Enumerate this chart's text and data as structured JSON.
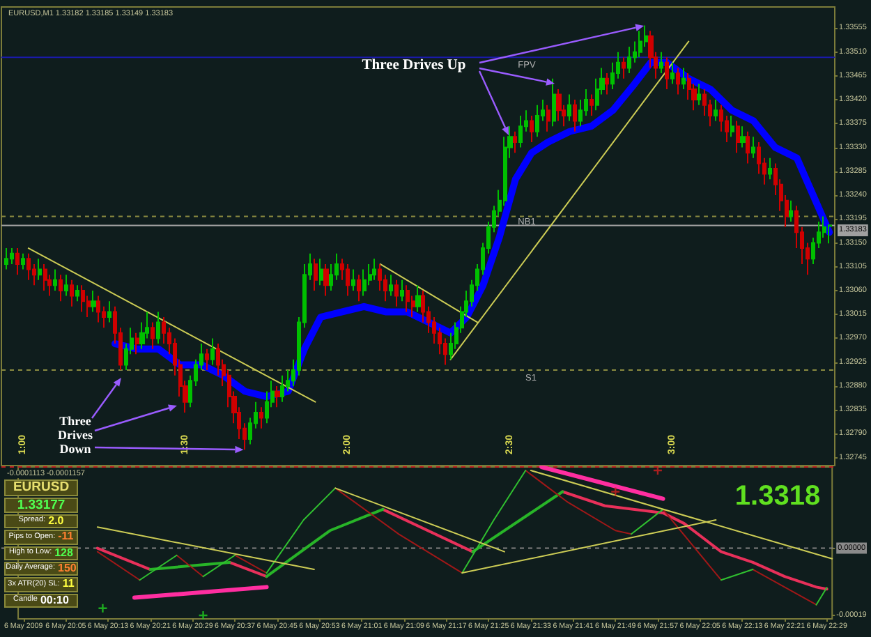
{
  "chart_data": [
    {
      "type": "candlestick",
      "title": "EURUSD,M1 1.33182 1.33185 1.33149 1.33183",
      "x": [
        "2009-05-06T19:57",
        "2009-05-06T19:58",
        "2009-05-06T19:59",
        "2009-05-06T20:00",
        "2009-05-06T20:01",
        "2009-05-06T20:02",
        "2009-05-06T20:03",
        "2009-05-06T20:04",
        "2009-05-06T20:05",
        "2009-05-06T20:06",
        "2009-05-06T20:07",
        "2009-05-06T20:08",
        "2009-05-06T20:09",
        "2009-05-06T20:10",
        "2009-05-06T20:11",
        "2009-05-06T20:12",
        "2009-05-06T20:13",
        "2009-05-06T20:14",
        "2009-05-06T20:15",
        "2009-05-06T20:16",
        "2009-05-06T20:17",
        "2009-05-06T20:18",
        "2009-05-06T20:19",
        "2009-05-06T20:20",
        "2009-05-06T20:21",
        "2009-05-06T20:22",
        "2009-05-06T20:23",
        "2009-05-06T20:24",
        "2009-05-06T20:25",
        "2009-05-06T20:26",
        "2009-05-06T20:27",
        "2009-05-06T20:28",
        "2009-05-06T20:29",
        "2009-05-06T20:30",
        "2009-05-06T20:31",
        "2009-05-06T20:32",
        "2009-05-06T20:33",
        "2009-05-06T20:34",
        "2009-05-06T20:35",
        "2009-05-06T20:36",
        "2009-05-06T20:37",
        "2009-05-06T20:38",
        "2009-05-06T20:39",
        "2009-05-06T20:40",
        "2009-05-06T20:41",
        "2009-05-06T20:42",
        "2009-05-06T20:43",
        "2009-05-06T20:44",
        "2009-05-06T20:45",
        "2009-05-06T20:46",
        "2009-05-06T20:47",
        "2009-05-06T20:48",
        "2009-05-06T20:49",
        "2009-05-06T20:50",
        "2009-05-06T20:51",
        "2009-05-06T20:52",
        "2009-05-06T20:53",
        "2009-05-06T20:54",
        "2009-05-06T20:55",
        "2009-05-06T20:56",
        "2009-05-06T20:57",
        "2009-05-06T20:58",
        "2009-05-06T20:59",
        "2009-05-06T21:00",
        "2009-05-06T21:01",
        "2009-05-06T21:02",
        "2009-05-06T21:03",
        "2009-05-06T21:04",
        "2009-05-06T21:05",
        "2009-05-06T21:06",
        "2009-05-06T21:07",
        "2009-05-06T21:08",
        "2009-05-06T21:09",
        "2009-05-06T21:10",
        "2009-05-06T21:11",
        "2009-05-06T21:12",
        "2009-05-06T21:13",
        "2009-05-06T21:14",
        "2009-05-06T21:15",
        "2009-05-06T21:16",
        "2009-05-06T21:17",
        "2009-05-06T21:18",
        "2009-05-06T21:19",
        "2009-05-06T21:20",
        "2009-05-06T21:21",
        "2009-05-06T21:22",
        "2009-05-06T21:23",
        "2009-05-06T21:24",
        "2009-05-06T21:25",
        "2009-05-06T21:26",
        "2009-05-06T21:27",
        "2009-05-06T21:28",
        "2009-05-06T21:29",
        "2009-05-06T21:30",
        "2009-05-06T21:31",
        "2009-05-06T21:32",
        "2009-05-06T21:33",
        "2009-05-06T21:34",
        "2009-05-06T21:35",
        "2009-05-06T21:36",
        "2009-05-06T21:37",
        "2009-05-06T21:38",
        "2009-05-06T21:39",
        "2009-05-06T21:40",
        "2009-05-06T21:41",
        "2009-05-06T21:42",
        "2009-05-06T21:43",
        "2009-05-06T21:44",
        "2009-05-06T21:45",
        "2009-05-06T21:46",
        "2009-05-06T21:47",
        "2009-05-06T21:48",
        "2009-05-06T21:49",
        "2009-05-06T21:50",
        "2009-05-06T21:51",
        "2009-05-06T21:52",
        "2009-05-06T21:53",
        "2009-05-06T21:54",
        "2009-05-06T21:55",
        "2009-05-06T21:56",
        "2009-05-06T21:57",
        "2009-05-06T21:58",
        "2009-05-06T21:59",
        "2009-05-06T22:00",
        "2009-05-06T22:01",
        "2009-05-06T22:02",
        "2009-05-06T22:03",
        "2009-05-06T22:04",
        "2009-05-06T22:05",
        "2009-05-06T22:06",
        "2009-05-06T22:07",
        "2009-05-06T22:08",
        "2009-05-06T22:09",
        "2009-05-06T22:10",
        "2009-05-06T22:11",
        "2009-05-06T22:12",
        "2009-05-06T22:13",
        "2009-05-06T22:14",
        "2009-05-06T22:15",
        "2009-05-06T22:16",
        "2009-05-06T22:17",
        "2009-05-06T22:18",
        "2009-05-06T22:19",
        "2009-05-06T22:20",
        "2009-05-06T22:21",
        "2009-05-06T22:22",
        "2009-05-06T22:23",
        "2009-05-06T22:24",
        "2009-05-06T22:25",
        "2009-05-06T22:26",
        "2009-05-06T22:27",
        "2009-05-06T22:28",
        "2009-05-06T22:29"
      ],
      "ohlc": [
        [
          1.3311,
          1.3314,
          1.331,
          1.3312
        ],
        [
          1.3312,
          1.3314,
          1.3311,
          1.3313
        ],
        [
          1.3313,
          1.3314,
          1.3309,
          1.3311
        ],
        [
          1.3311,
          1.3313,
          1.331,
          1.3312
        ],
        [
          1.3312,
          1.3313,
          1.3308,
          1.331
        ],
        [
          1.331,
          1.3311,
          1.3307,
          1.3309
        ],
        [
          1.3309,
          1.3312,
          1.3308,
          1.331
        ],
        [
          1.331,
          1.3311,
          1.3306,
          1.3308
        ],
        [
          1.3308,
          1.3309,
          1.3305,
          1.3307
        ],
        [
          1.3307,
          1.331,
          1.3306,
          1.3308
        ],
        [
          1.3308,
          1.3309,
          1.3304,
          1.3306
        ],
        [
          1.3306,
          1.3309,
          1.3305,
          1.3307
        ],
        [
          1.3307,
          1.3308,
          1.3303,
          1.3305
        ],
        [
          1.3305,
          1.3307,
          1.3304,
          1.3306
        ],
        [
          1.3306,
          1.3307,
          1.3302,
          1.3304
        ],
        [
          1.3304,
          1.3305,
          1.3301,
          1.3303
        ],
        [
          1.3303,
          1.3306,
          1.3302,
          1.3304
        ],
        [
          1.3304,
          1.3305,
          1.33,
          1.3302
        ],
        [
          1.3302,
          1.3303,
          1.3299,
          1.3301
        ],
        [
          1.3301,
          1.3304,
          1.33,
          1.3302
        ],
        [
          1.3302,
          1.3303,
          1.3296,
          1.3298
        ],
        [
          1.3298,
          1.3299,
          1.3291,
          1.3292
        ],
        [
          1.3292,
          1.3296,
          1.3291,
          1.3295
        ],
        [
          1.3295,
          1.3299,
          1.3294,
          1.3297
        ],
        [
          1.3297,
          1.3298,
          1.3294,
          1.3296
        ],
        [
          1.3296,
          1.33,
          1.3295,
          1.3298
        ],
        [
          1.3298,
          1.3302,
          1.3297,
          1.3299
        ],
        [
          1.3299,
          1.33,
          1.3295,
          1.3297
        ],
        [
          1.3297,
          1.3302,
          1.3296,
          1.33
        ],
        [
          1.33,
          1.3301,
          1.3296,
          1.3298
        ],
        [
          1.3298,
          1.3299,
          1.3294,
          1.3296
        ],
        [
          1.3296,
          1.3297,
          1.329,
          1.3292
        ],
        [
          1.3292,
          1.3293,
          1.3286,
          1.3288
        ],
        [
          1.3288,
          1.3289,
          1.3283,
          1.3285
        ],
        [
          1.3285,
          1.329,
          1.3284,
          1.3289
        ],
        [
          1.3289,
          1.3293,
          1.3288,
          1.3292
        ],
        [
          1.3292,
          1.3296,
          1.3291,
          1.3294
        ],
        [
          1.3294,
          1.3295,
          1.3291,
          1.3293
        ],
        [
          1.3293,
          1.3297,
          1.3292,
          1.3295
        ],
        [
          1.3295,
          1.3296,
          1.329,
          1.3292
        ],
        [
          1.3292,
          1.3293,
          1.3288,
          1.329
        ],
        [
          1.329,
          1.3291,
          1.3284,
          1.3286
        ],
        [
          1.3286,
          1.3287,
          1.3281,
          1.3283
        ],
        [
          1.3283,
          1.3284,
          1.3278,
          1.328
        ],
        [
          1.328,
          1.3281,
          1.3276,
          1.3278
        ],
        [
          1.3278,
          1.3282,
          1.3277,
          1.3281
        ],
        [
          1.3281,
          1.3285,
          1.328,
          1.3283
        ],
        [
          1.3283,
          1.3284,
          1.328,
          1.3282
        ],
        [
          1.3282,
          1.3287,
          1.3281,
          1.3285
        ],
        [
          1.3285,
          1.3289,
          1.3284,
          1.3287
        ],
        [
          1.3287,
          1.3288,
          1.3284,
          1.3286
        ],
        [
          1.3286,
          1.329,
          1.3285,
          1.3288
        ],
        [
          1.3288,
          1.3291,
          1.3287,
          1.3289
        ],
        [
          1.3289,
          1.3293,
          1.3288,
          1.3291
        ],
        [
          1.3291,
          1.3301,
          1.329,
          1.33
        ],
        [
          1.33,
          1.3311,
          1.3299,
          1.3309
        ],
        [
          1.3309,
          1.3313,
          1.3308,
          1.3311
        ],
        [
          1.3311,
          1.3312,
          1.3306,
          1.3308
        ],
        [
          1.3308,
          1.3312,
          1.3307,
          1.331
        ],
        [
          1.331,
          1.3311,
          1.3305,
          1.3307
        ],
        [
          1.3307,
          1.3311,
          1.3306,
          1.3309
        ],
        [
          1.3309,
          1.3313,
          1.3308,
          1.3311
        ],
        [
          1.3311,
          1.3312,
          1.3308,
          1.331
        ],
        [
          1.331,
          1.3311,
          1.3305,
          1.3307
        ],
        [
          1.3307,
          1.331,
          1.3306,
          1.3308
        ],
        [
          1.3308,
          1.3309,
          1.3304,
          1.3306
        ],
        [
          1.3306,
          1.331,
          1.3305,
          1.3308
        ],
        [
          1.3308,
          1.3311,
          1.3307,
          1.3309
        ],
        [
          1.3309,
          1.3312,
          1.3308,
          1.331
        ],
        [
          1.331,
          1.3311,
          1.3306,
          1.3308
        ],
        [
          1.3308,
          1.3309,
          1.3304,
          1.3306
        ],
        [
          1.3306,
          1.3309,
          1.3305,
          1.3307
        ],
        [
          1.3307,
          1.3308,
          1.3303,
          1.3305
        ],
        [
          1.3305,
          1.3308,
          1.3304,
          1.3306
        ],
        [
          1.3306,
          1.3307,
          1.3302,
          1.3304
        ],
        [
          1.3304,
          1.3305,
          1.3301,
          1.3303
        ],
        [
          1.3303,
          1.3307,
          1.3302,
          1.3305
        ],
        [
          1.3305,
          1.3306,
          1.33,
          1.3302
        ],
        [
          1.3302,
          1.3303,
          1.3298,
          1.33
        ],
        [
          1.33,
          1.3301,
          1.3296,
          1.3298
        ],
        [
          1.3298,
          1.3299,
          1.3294,
          1.3296
        ],
        [
          1.3296,
          1.3297,
          1.3292,
          1.3294
        ],
        [
          1.3294,
          1.3298,
          1.3293,
          1.3296
        ],
        [
          1.3296,
          1.33,
          1.3295,
          1.3299
        ],
        [
          1.3299,
          1.3303,
          1.3298,
          1.3302
        ],
        [
          1.3302,
          1.3306,
          1.3301,
          1.3304
        ],
        [
          1.3304,
          1.3308,
          1.3303,
          1.3307
        ],
        [
          1.3307,
          1.3311,
          1.3306,
          1.331
        ],
        [
          1.331,
          1.3315,
          1.3309,
          1.3314
        ],
        [
          1.3314,
          1.3319,
          1.3313,
          1.3318
        ],
        [
          1.3318,
          1.3322,
          1.3317,
          1.3321
        ],
        [
          1.3321,
          1.3325,
          1.332,
          1.3323
        ],
        [
          1.3323,
          1.3335,
          1.3322,
          1.3333
        ],
        [
          1.3333,
          1.3337,
          1.3331,
          1.3335
        ],
        [
          1.3335,
          1.3336,
          1.3332,
          1.3334
        ],
        [
          1.3334,
          1.3339,
          1.3333,
          1.3337
        ],
        [
          1.3337,
          1.334,
          1.3336,
          1.3338
        ],
        [
          1.3338,
          1.3339,
          1.3334,
          1.3336
        ],
        [
          1.3336,
          1.3341,
          1.3335,
          1.3339
        ],
        [
          1.3339,
          1.3342,
          1.3338,
          1.334
        ],
        [
          1.334,
          1.3341,
          1.3336,
          1.3338
        ],
        [
          1.3338,
          1.3346,
          1.3337,
          1.3343
        ],
        [
          1.3343,
          1.3344,
          1.3338,
          1.334
        ],
        [
          1.334,
          1.3341,
          1.3337,
          1.3339
        ],
        [
          1.3339,
          1.3343,
          1.3338,
          1.3341
        ],
        [
          1.3341,
          1.3342,
          1.3336,
          1.3338
        ],
        [
          1.3338,
          1.3342,
          1.3337,
          1.334
        ],
        [
          1.334,
          1.3344,
          1.3339,
          1.3342
        ],
        [
          1.3342,
          1.3343,
          1.3339,
          1.3341
        ],
        [
          1.3341,
          1.3346,
          1.334,
          1.3344
        ],
        [
          1.3344,
          1.3348,
          1.3343,
          1.3346
        ],
        [
          1.3346,
          1.3347,
          1.3343,
          1.3345
        ],
        [
          1.3345,
          1.3349,
          1.3344,
          1.3347
        ],
        [
          1.3347,
          1.3351,
          1.3346,
          1.3349
        ],
        [
          1.3349,
          1.335,
          1.3346,
          1.3348
        ],
        [
          1.3348,
          1.3352,
          1.3347,
          1.335
        ],
        [
          1.335,
          1.3353,
          1.3349,
          1.3351
        ],
        [
          1.3351,
          1.3355,
          1.335,
          1.3353
        ],
        [
          1.3353,
          1.3356,
          1.3352,
          1.3354
        ],
        [
          1.3354,
          1.3355,
          1.3348,
          1.335
        ],
        [
          1.335,
          1.3351,
          1.3346,
          1.3348
        ],
        [
          1.3348,
          1.3351,
          1.3347,
          1.3349
        ],
        [
          1.3349,
          1.335,
          1.3344,
          1.3346
        ],
        [
          1.3346,
          1.3349,
          1.3345,
          1.3347
        ],
        [
          1.3347,
          1.3348,
          1.3343,
          1.3345
        ],
        [
          1.3345,
          1.3348,
          1.3344,
          1.3346
        ],
        [
          1.3346,
          1.3347,
          1.3342,
          1.3344
        ],
        [
          1.3344,
          1.3345,
          1.334,
          1.3342
        ],
        [
          1.3342,
          1.3345,
          1.3341,
          1.3343
        ],
        [
          1.3343,
          1.3344,
          1.3339,
          1.3341
        ],
        [
          1.3341,
          1.3342,
          1.3337,
          1.3339
        ],
        [
          1.3339,
          1.3342,
          1.3338,
          1.334
        ],
        [
          1.334,
          1.3341,
          1.3336,
          1.3338
        ],
        [
          1.3338,
          1.3339,
          1.3334,
          1.3336
        ],
        [
          1.3336,
          1.3339,
          1.3335,
          1.3337
        ],
        [
          1.3337,
          1.3338,
          1.3332,
          1.3334
        ],
        [
          1.3334,
          1.3337,
          1.3333,
          1.3335
        ],
        [
          1.3335,
          1.3336,
          1.333,
          1.3332
        ],
        [
          1.3332,
          1.3335,
          1.3331,
          1.3333
        ],
        [
          1.3333,
          1.3334,
          1.3328,
          1.333
        ],
        [
          1.333,
          1.3331,
          1.3326,
          1.3328
        ],
        [
          1.3328,
          1.3331,
          1.3327,
          1.3329
        ],
        [
          1.3329,
          1.333,
          1.3324,
          1.3326
        ],
        [
          1.3326,
          1.3327,
          1.3321,
          1.3323
        ],
        [
          1.3323,
          1.3324,
          1.3318,
          1.332
        ],
        [
          1.332,
          1.3323,
          1.3319,
          1.3321
        ],
        [
          1.3321,
          1.3322,
          1.3314,
          1.3317
        ],
        [
          1.3317,
          1.3318,
          1.3311,
          1.3314
        ],
        [
          1.3314,
          1.3315,
          1.3309,
          1.3312
        ],
        [
          1.3312,
          1.3316,
          1.3311,
          1.3315
        ],
        [
          1.3315,
          1.3319,
          1.3314,
          1.3317
        ],
        [
          1.3317,
          1.332,
          1.3316,
          1.3318
        ],
        [
          1.33182,
          1.33185,
          1.33149,
          1.33183
        ]
      ],
      "xlim": [
        "2009-05-06T19:56",
        "2009-05-06T22:30"
      ],
      "ylim": [
        1.3273,
        1.33595
      ],
      "xticks": [
        {
          "value": "2009-05-06T20:00",
          "label": "1:00"
        },
        {
          "value": "2009-05-06T20:30",
          "label": "1:30"
        },
        {
          "value": "2009-05-06T21:00",
          "label": "2:00"
        },
        {
          "value": "2009-05-06T21:30",
          "label": "2:30"
        },
        {
          "value": "2009-05-06T22:00",
          "label": "3:00"
        }
      ],
      "yticks": [
        1.32745,
        {
          "value": 1.3279,
          "label": "1.32790"
        },
        1.32835,
        {
          "value": 1.3288,
          "label": "1.32880"
        },
        1.32925,
        {
          "value": 1.3297,
          "label": "1.32970"
        },
        1.33015,
        {
          "value": 1.3306,
          "label": "1.33060"
        },
        1.33105,
        {
          "value": 1.3315,
          "label": "1.33150"
        },
        1.33195,
        {
          "value": 1.3324,
          "label": "1.33240"
        },
        1.33285,
        {
          "value": 1.3333,
          "label": "1.33330"
        },
        1.33375,
        {
          "value": 1.3342,
          "label": "1.33420"
        },
        1.33465,
        {
          "value": 1.3351,
          "label": "1.33510"
        },
        1.33555
      ],
      "series": [
        {
          "type": "line",
          "color": "#0000ff",
          "x": [
            "2009-05-06T20:17",
            "2009-05-06T20:21",
            "2009-05-06T20:25",
            "2009-05-06T20:29",
            "2009-05-06T20:33",
            "2009-05-06T20:37",
            "2009-05-06T20:41",
            "2009-05-06T20:45",
            "2009-05-06T20:49",
            "2009-05-06T20:52",
            "2009-05-06T20:55",
            "2009-05-06T20:59",
            "2009-05-06T21:03",
            "2009-05-06T21:07",
            "2009-05-06T21:11",
            "2009-05-06T21:15",
            "2009-05-06T21:19",
            "2009-05-06T21:22",
            "2009-05-06T21:25",
            "2009-05-06T21:28",
            "2009-05-06T21:31",
            "2009-05-06T21:34",
            "2009-05-06T21:37",
            "2009-05-06T21:41",
            "2009-05-06T21:45",
            "2009-05-06T21:49",
            "2009-05-06T21:53",
            "2009-05-06T21:56",
            "2009-05-06T21:59",
            "2009-05-06T22:03",
            "2009-05-06T22:07",
            "2009-05-06T22:11",
            "2009-05-06T22:15",
            "2009-05-06T22:19",
            "2009-05-06T22:23",
            "2009-05-06T22:26",
            "2009-05-06T22:29"
          ],
          "values": [
            1.3296,
            1.3295,
            1.3295,
            1.3292,
            1.3292,
            1.329,
            1.3287,
            1.3286,
            1.3287,
            1.3295,
            1.3301,
            1.3302,
            1.3303,
            1.3302,
            1.3302,
            1.33,
            1.3298,
            1.3301,
            1.3307,
            1.3316,
            1.3327,
            1.3332,
            1.3334,
            1.3336,
            1.3337,
            1.334,
            1.3345,
            1.3349,
            1.3349,
            1.3346,
            1.3344,
            1.334,
            1.3338,
            1.3333,
            1.3331,
            1.3324,
            1.3317
          ]
        },
        {
          "type": "line",
          "color": "#cccc55",
          "x": [
            "2009-05-06T20:01",
            "2009-05-06T20:54"
          ],
          "values": [
            1.3314,
            1.3285
          ]
        },
        {
          "type": "line",
          "color": "#cccc55",
          "x": [
            "2009-05-06T21:06",
            "2009-05-06T21:24"
          ],
          "values": [
            1.3311,
            1.33
          ]
        },
        {
          "type": "line",
          "color": "#cccc55",
          "x": [
            "2009-05-06T21:19",
            "2009-05-06T22:03"
          ],
          "values": [
            1.3293,
            1.3353
          ]
        }
      ],
      "ref_lines": [
        {
          "axis": "y",
          "value": 1.335,
          "label": "FPV",
          "color": "#1a1aa8"
        },
        {
          "axis": "y",
          "value": 1.332,
          "label": "NB1",
          "color": "#8a8a40",
          "line_style": "dashed"
        },
        {
          "axis": "y",
          "value": 1.33183,
          "label": "1.33183",
          "color": "#a0a0a0"
        },
        {
          "axis": "y",
          "value": 1.3291,
          "label": "S1",
          "color": "#8a8a40",
          "line_style": "dashed"
        }
      ],
      "annotations": [
        {
          "text": "Three Drives Up",
          "x": "2009-05-06T21:55",
          "y": 1.3356
        },
        {
          "text": "Three Drives Down",
          "x": "2009-05-06T20:41",
          "y": 1.3276
        }
      ]
    },
    {
      "type": "line",
      "title": "-0.0001113 -0.0001157",
      "xlim": [
        "2009-05-06T19:56",
        "2009-05-06T22:30"
      ],
      "xticks": [
        {
          "value": "2009-05-06T19:57",
          "label": "6 May 2009"
        },
        {
          "value": "2009-05-06T20:05",
          "label": "6 May 20:05"
        },
        {
          "value": "2009-05-06T20:13",
          "label": "6 May 20:13"
        },
        {
          "value": "2009-05-06T20:21",
          "label": "6 May 20:21"
        },
        {
          "value": "2009-05-06T20:29",
          "label": "6 May 20:29"
        },
        {
          "value": "2009-05-06T20:37",
          "label": "6 May 20:37"
        },
        {
          "value": "2009-05-06T20:45",
          "label": "6 May 20:45"
        },
        {
          "value": "2009-05-06T20:53",
          "label": "6 May 20:53"
        },
        {
          "value": "2009-05-06T21:01",
          "label": "6 May 21:01"
        },
        {
          "value": "2009-05-06T21:09",
          "label": "6 May 21:09"
        },
        {
          "value": "2009-05-06T21:17",
          "label": "6 May 21:17"
        },
        {
          "value": "2009-05-06T21:25",
          "label": "6 May 21:25"
        },
        {
          "value": "2009-05-06T21:33",
          "label": "6 May 21:33"
        },
        {
          "value": "2009-05-06T21:41",
          "label": "6 May 21:41"
        },
        {
          "value": "2009-05-06T21:49",
          "label": "6 May 21:49"
        },
        {
          "value": "2009-05-06T21:57",
          "label": "6 May 21:57"
        },
        {
          "value": "2009-05-06T22:05",
          "label": "6 May 22:05"
        },
        {
          "value": "2009-05-06T22:13",
          "label": "6 May 22:13"
        },
        {
          "value": "2009-05-06T22:21",
          "label": "6 May 22:21"
        },
        {
          "value": "2009-05-06T22:29",
          "label": "6 May 22:29"
        }
      ],
      "ylim": [
        -0.0002,
        0.00023
      ],
      "yticks": [
        -0.00019,
        {
          "value": 0,
          "label": "0.00000"
        }
      ],
      "series": [
        {
          "color": "#e8305a",
          "x": [
            "2009-05-06T20:11",
            "2009-05-06T20:21",
            "2009-05-06T20:30",
            "2009-05-06T20:36",
            "2009-05-06T20:43",
            "2009-05-06T20:55",
            "2009-05-06T21:05",
            "2009-05-06T21:22",
            "2009-05-06T21:30",
            "2009-05-06T21:39",
            "2009-05-06T21:47",
            "2009-05-06T21:58",
            "2009-05-06T22:02",
            "2009-05-06T22:09",
            "2009-05-06T22:15",
            "2009-05-06T22:21",
            "2009-05-06T22:27",
            "2009-05-06T22:29"
          ],
          "values": [
            0,
            -6e-05,
            null,
            -4e-05,
            -8e-05,
            null,
            0.00011,
            -1e-05,
            null,
            0.00016,
            0.00012,
            0.0001,
            7e-05,
            -1e-05,
            -4e-05,
            -8e-05,
            -0.00011,
            -0.0001157
          ]
        },
        {
          "color": "#28b428",
          "x": [
            "2009-05-06T20:21",
            "2009-05-06T20:36",
            "2009-05-06T20:40",
            "2009-05-06T20:43",
            "2009-05-06T20:55",
            "2009-05-06T21:05",
            "2009-05-06T21:15",
            "2009-05-06T21:22",
            "2009-05-06T21:39"
          ],
          "values": [
            -6e-05,
            -4e-05,
            null,
            -8e-05,
            5e-05,
            0.00011,
            null,
            -1e-05,
            0.00016
          ]
        },
        {
          "color": "#a01818",
          "x": [
            "2009-05-06T20:11",
            "2009-05-06T20:19",
            "2009-05-06T20:22",
            "2009-05-06T20:26",
            "2009-05-06T20:31",
            "2009-05-06T20:34",
            "2009-05-06T20:37",
            "2009-05-06T20:43",
            "2009-05-06T20:50",
            "2009-05-06T20:56",
            "2009-05-06T21:08",
            "2009-05-06T21:20",
            "2009-05-06T21:26",
            "2009-05-06T21:32",
            "2009-05-06T21:40",
            "2009-05-06T21:49",
            "2009-05-06T21:52",
            "2009-05-06T21:55",
            "2009-05-06T21:58",
            "2009-05-06T22:09",
            "2009-05-06T22:12",
            "2009-05-06T22:15",
            "2009-05-06T22:27"
          ],
          "values": [
            -1e-05,
            -9e-05,
            null,
            -2e-05,
            -8e-05,
            null,
            -2e-05,
            -7e-05,
            null,
            0.00017,
            4e-05,
            -7e-05,
            null,
            0.00022,
            0.00013,
            5e-05,
            4e-05,
            null,
            0.00011,
            -9e-05,
            null,
            -6e-05,
            -0.00016
          ]
        },
        {
          "color": "#30c030",
          "x": [
            "2009-05-06T20:19",
            "2009-05-06T20:26",
            "2009-05-06T20:28",
            "2009-05-06T20:31",
            "2009-05-06T20:37",
            "2009-05-06T20:40",
            "2009-05-06T20:43",
            "2009-05-06T20:50",
            "2009-05-06T20:56",
            "2009-05-06T21:08",
            "2009-05-06T21:20",
            "2009-05-06T21:26",
            "2009-05-06T21:32",
            "2009-05-06T21:45",
            "2009-05-06T21:52",
            "2009-05-06T21:58",
            "2009-05-06T22:03",
            "2009-05-06T22:09",
            "2009-05-06T22:15",
            "2009-05-06T22:20",
            "2009-05-06T22:27",
            "2009-05-06T22:29"
          ],
          "values": [
            -9e-05,
            -2e-05,
            null,
            -8e-05,
            -2e-05,
            null,
            -7e-05,
            8e-05,
            0.00017,
            null,
            -7e-05,
            8e-05,
            0.00022,
            null,
            4e-05,
            0.00011,
            null,
            -9e-05,
            -6e-05,
            null,
            -0.00016,
            -0.0001113
          ]
        },
        {
          "color": "#cccc55",
          "x": [
            "2009-05-06T20:11",
            "2009-05-06T20:52"
          ],
          "values": [
            6e-05,
            -6e-05
          ]
        },
        {
          "color": "#cccc55",
          "x": [
            "2009-05-06T20:56",
            "2009-05-06T21:28"
          ],
          "values": [
            0.00017,
            -1e-05
          ]
        },
        {
          "color": "#cccc55",
          "x": [
            "2009-05-06T21:20",
            "2009-05-06T22:08"
          ],
          "values": [
            -7e-05,
            8e-05
          ]
        },
        {
          "color": "#cccc55",
          "x": [
            "2009-05-06T21:33",
            "2009-05-06T22:30"
          ],
          "values": [
            0.00022,
            -3e-05
          ]
        },
        {
          "color": "#ff2ea0",
          "x": [
            "2009-05-06T20:18",
            "2009-05-06T20:43"
          ],
          "values": [
            -0.00014,
            -0.00011
          ]
        },
        {
          "color": "#ff2ea0",
          "x": [
            "2009-05-06T21:35",
            "2009-05-06T21:58"
          ],
          "values": [
            0.00023,
            0.00014
          ]
        },
        {
          "type": "scatter",
          "color": "#20d020",
          "marker": "cross",
          "x": [
            "2009-05-06T20:12",
            "2009-05-06T20:31"
          ],
          "values": [
            -0.00017,
            -0.00019
          ]
        },
        {
          "type": "scatter",
          "color": "#d02020",
          "marker": "cross",
          "x": [
            "2009-05-06T21:49",
            "2009-05-06T21:57"
          ],
          "values": [
            0.00016,
            0.00022
          ]
        }
      ],
      "ref_lines": [
        {
          "axis": "y",
          "value": 0.00023,
          "color": "#c02020",
          "line_style": "dashed"
        },
        {
          "axis": "y",
          "value": 0,
          "color": "#808080",
          "line_style": "dashed"
        }
      ],
      "annotations": [
        "1.3318"
      ]
    },
    {
      "type": "other",
      "annotations": [
        "EURUSD",
        "1.33177",
        "Spread: 2.0",
        "Pips to Open: -11",
        "High to Low: 128",
        "Daily Average: 150",
        "3x ATR(20) SL: 11",
        "Candle 00:10"
      ]
    }
  ]
}
